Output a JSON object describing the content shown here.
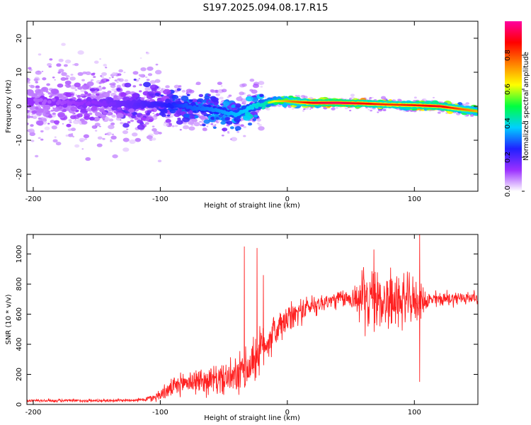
{
  "title": "S197.2025.094.08.17.R15",
  "chart_data": [
    {
      "type": "heatmap",
      "xlabel": "Height of straight line (km)",
      "ylabel": "Frequency (Hz)",
      "xlim": [
        -205,
        150
      ],
      "ylim": [
        -25,
        25
      ],
      "x_ticks": [
        -200,
        -100,
        0,
        100
      ],
      "y_ticks": [
        -20,
        -10,
        0,
        10,
        20
      ],
      "x_tick_labels": [
        "-200",
        "-100",
        "0",
        "100"
      ],
      "y_tick_labels": [
        "-20",
        "-10",
        "0",
        "10",
        "20"
      ],
      "grid": false,
      "colorbar": {
        "label": "Normalized spectral amplitude",
        "range": [
          0,
          1
        ],
        "ticks": [
          0.0,
          0.2,
          0.4,
          0.6,
          0.8
        ],
        "tick_labels": [
          "0.0",
          "0.2",
          "0.4",
          "0.6",
          "0.8"
        ],
        "colors": [
          "#ffffff",
          "#9b30ff",
          "#2020ff",
          "#00d0ff",
          "#00ff40",
          "#ffff00",
          "#ff8000",
          "#ff0000",
          "#ff00a0"
        ]
      },
      "ridge": {
        "x": [
          -200,
          -150,
          -120,
          -100,
          -80,
          -60,
          -40,
          -30,
          -20,
          -10,
          0,
          10,
          20,
          40,
          60,
          80,
          100,
          120,
          150
        ],
        "frequency": [
          1.5,
          1.0,
          0.5,
          0.5,
          0.0,
          -1.0,
          -2.5,
          -0.5,
          0.5,
          1.5,
          1.5,
          1.2,
          1.0,
          1.0,
          0.8,
          0.5,
          0.3,
          0.0,
          -1.5
        ],
        "amplitude": [
          0.12,
          0.18,
          0.25,
          0.3,
          0.38,
          0.42,
          0.48,
          0.5,
          0.55,
          0.62,
          0.72,
          0.8,
          0.9,
          0.95,
          0.88,
          0.82,
          0.85,
          0.9,
          0.7
        ]
      },
      "scatter_spread_hz": [
        {
          "x_from": -205,
          "x_to": -100,
          "spread": 24
        },
        {
          "x_from": -100,
          "x_to": -20,
          "spread": 12
        },
        {
          "x_from": -20,
          "x_to": 150,
          "spread": 3
        }
      ]
    },
    {
      "type": "line",
      "xlabel": "Height of straight line (km)",
      "ylabel": "SNR (10 * v/v)",
      "xlim": [
        -205,
        150
      ],
      "ylim": [
        0,
        1130
      ],
      "x_ticks": [
        -200,
        -100,
        0,
        100
      ],
      "y_ticks": [
        0,
        200,
        400,
        600,
        800,
        1000
      ],
      "x_tick_labels": [
        "-200",
        "-100",
        "0",
        "100"
      ],
      "y_tick_labels": [
        "0",
        "200",
        "400",
        "600",
        "800",
        "1000"
      ],
      "grid": false,
      "series": [
        {
          "color": "#ff2020",
          "baseline": {
            "x": [
              -205,
              -150,
              -115,
              -105,
              -95,
              -80,
              -60,
              -40,
              -30,
              -20,
              -10,
              0,
              10,
              20,
              30,
              40,
              50,
              60,
              70,
              80,
              90,
              100,
              110,
              120,
              130,
              140,
              150
            ],
            "y": [
              25,
              25,
              30,
              45,
              90,
              150,
              160,
              180,
              250,
              380,
              480,
              560,
              620,
              660,
              680,
              700,
              705,
              700,
              700,
              690,
              690,
              690,
              690,
              700,
              705,
              710,
              710
            ]
          },
          "noise_amplitude": {
            "x": [
              -205,
              -115,
              -100,
              -80,
              -50,
              -30,
              -20,
              0,
              30,
              50,
              60,
              80,
              100,
              110,
              150
            ],
            "y": [
              10,
              10,
              40,
              80,
              100,
              160,
              150,
              100,
              60,
              60,
              200,
              200,
              150,
              60,
              40
            ]
          },
          "spikes": [
            {
              "x": -34,
              "y": 1050
            },
            {
              "x": -24,
              "y": 1040
            },
            {
              "x": -19,
              "y": 860
            },
            {
              "x": 68,
              "y": 1030
            },
            {
              "x": 104,
              "y": 1130
            },
            {
              "x": 104,
              "y": 150
            }
          ]
        }
      ]
    }
  ]
}
